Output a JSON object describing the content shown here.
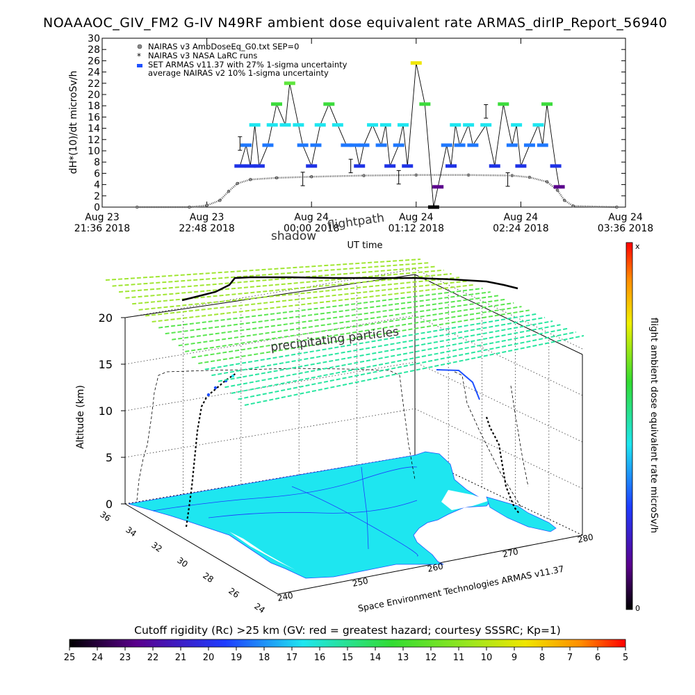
{
  "title": "NOAAAOC_GIV_FM2 G-IV   N49RF  ambient dose equivalent rate ARMAS_dirIP_Report_56940",
  "chart_data": [
    {
      "type": "scatter",
      "ylabel": "dH*(10)/dt microSv/h",
      "xlabel": "UT time",
      "ylim": [
        0,
        30
      ],
      "y_ticks": [
        "0",
        "2",
        "4",
        "6",
        "8",
        "10",
        "12",
        "14",
        "16",
        "18",
        "20",
        "22",
        "24",
        "26",
        "28",
        "30"
      ],
      "x_range_hours": [
        21.6,
        27.6
      ],
      "x_ticks": [
        {
          "day": "Aug 23",
          "time": "21:36 2018",
          "h": 21.6
        },
        {
          "day": "Aug 23",
          "time": "22:48 2018",
          "h": 22.8
        },
        {
          "day": "Aug 24",
          "time": "00:00 2018",
          "h": 24.0
        },
        {
          "day": "Aug 24",
          "time": "01:12 2018",
          "h": 25.2
        },
        {
          "day": "Aug 24",
          "time": "02:24 2018",
          "h": 26.4
        },
        {
          "day": "Aug 24",
          "time": "03:36 2018",
          "h": 27.6
        }
      ],
      "legend": [
        {
          "label": "NAIRAS v3 AmbDoseEq_G0.txt SEP=0",
          "marker": "circle-gray"
        },
        {
          "label": "NAIRAS v3 NASA LaRC runs",
          "marker": "asterisk"
        },
        {
          "label": "SET ARMAS v11.37 with 27% 1-sigma uncertainty",
          "marker": "blue-block"
        },
        {
          "label": "average NAIRAS v2 10% 1-sigma uncertainty",
          "marker": "none"
        }
      ],
      "series": [
        {
          "name": "NAIRAS v3 AmbDoseEq_G0.txt SEP=0",
          "x_hours": [
            22.0,
            22.6,
            22.8,
            22.95,
            23.05,
            23.15,
            23.3,
            23.6,
            24.0,
            24.6,
            25.2,
            25.8,
            26.3,
            26.5,
            26.7,
            26.82,
            26.9,
            27.0,
            27.5
          ],
          "y": [
            0,
            0,
            0.3,
            1.2,
            2.8,
            4.2,
            4.9,
            5.2,
            5.4,
            5.6,
            5.7,
            5.7,
            5.6,
            5.3,
            4.5,
            3.0,
            1.2,
            0.2,
            0
          ]
        },
        {
          "name": "SET ARMAS v11.37 with 27% 1-sigma uncertainty",
          "x_hours": [
            23.18,
            23.25,
            23.3,
            23.35,
            23.4,
            23.5,
            23.55,
            23.6,
            23.7,
            23.75,
            23.85,
            23.9,
            24.0,
            24.05,
            24.1,
            24.2,
            24.3,
            24.4,
            24.5,
            24.55,
            24.6,
            24.7,
            24.8,
            24.85,
            24.9,
            25.0,
            25.05,
            25.1,
            25.2,
            25.3,
            25.4,
            25.45,
            25.55,
            25.6,
            25.65,
            25.7,
            25.8,
            25.85,
            26.0,
            26.1,
            26.2,
            26.3,
            26.35,
            26.4,
            26.5,
            26.6,
            26.65,
            26.7,
            26.8,
            26.84
          ],
          "y": [
            7.3,
            11,
            7.3,
            14.6,
            7.3,
            11,
            14.6,
            18.3,
            14.6,
            22,
            14.6,
            11,
            7.3,
            11,
            14.6,
            18.3,
            14.6,
            11,
            11,
            7.3,
            11,
            14.6,
            11,
            14.6,
            7.3,
            11,
            14.6,
            7.3,
            25.6,
            18.3,
            0,
            3.6,
            11,
            7.3,
            14.6,
            11,
            14.6,
            11,
            14.6,
            7.3,
            18.3,
            11,
            14.6,
            7.3,
            11,
            14.6,
            11,
            18.3,
            7.3,
            3.6
          ]
        }
      ]
    },
    {
      "type": "3d-flight-profile",
      "zlabel": "Altitude (km)",
      "z_ticks": [
        "0",
        "5",
        "10",
        "15",
        "20"
      ],
      "lat_ticks": [
        "36",
        "34",
        "32",
        "30",
        "28",
        "26",
        "24"
      ],
      "lon_ticks": [
        "240",
        "250",
        "260",
        "270",
        "280"
      ],
      "labels": [
        "shadow",
        "flightpath",
        "precipitating particles"
      ],
      "credit": "Space Environment Technologies ARMAS v11.37",
      "colorbar_label": "flight ambient dose equivalent rate microSv/h",
      "colorbar_top": "x",
      "colorbar_bottom": "0",
      "bottom_title": "Cutoff rigidity (Rc) >25 km (GV: red = greatest hazard; courtesy SSSRC; Kp=1)",
      "rc_ticks": [
        "25",
        "24",
        "23",
        "22",
        "21",
        "20",
        "19",
        "18",
        "17",
        "16",
        "15",
        "14",
        "13",
        "12",
        "11",
        "10",
        "9",
        "8",
        "7",
        "6",
        "5"
      ]
    }
  ],
  "colors": {
    "armas_blue": "#1e50ff",
    "ground": "#1ee6f0",
    "grid_green": "#3cdc3c",
    "track": "#000000"
  }
}
